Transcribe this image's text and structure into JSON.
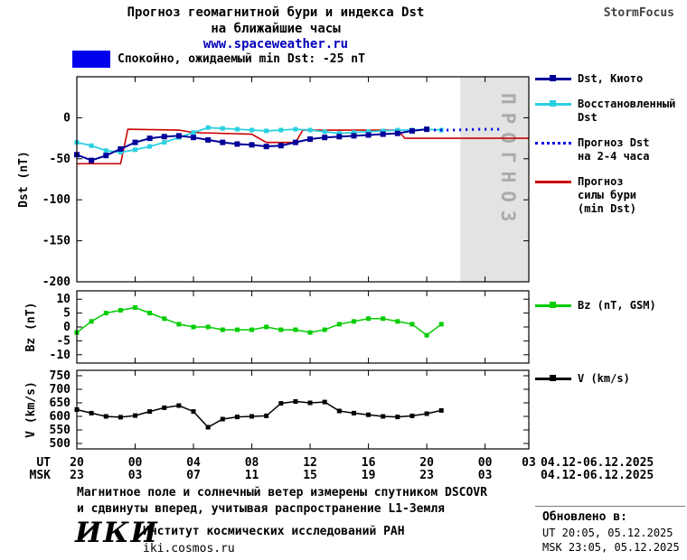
{
  "header": {
    "title_line1": "Прогноз геомагнитной бури и индекса Dst",
    "title_line2": "на ближайшие часы",
    "website": "www.spaceweather.ru",
    "brand": "StormFocus"
  },
  "banner": {
    "swatch_color": "#0000ee",
    "text": "Спокойно, ожидаемый min Dst: -25 nT"
  },
  "axis": {
    "xlim": [
      0,
      31
    ],
    "ticks_t": [
      0,
      4,
      8,
      12,
      16,
      20,
      24,
      28
    ],
    "ut": {
      "label": "UT",
      "ticks": [
        "20",
        "00",
        "04",
        "08",
        "12",
        "16",
        "20",
        "00"
      ],
      "edge": "03",
      "date": "04.12-06.12.2025"
    },
    "msk": {
      "label": "MSK",
      "ticks": [
        "23",
        "03",
        "07",
        "11",
        "15",
        "19",
        "23",
        "03"
      ],
      "edge": "",
      "date": "04.12-06.12.2025"
    }
  },
  "chart_data": [
    {
      "type": "line",
      "title": "Прогноз геомагнитной бури и индекса Dst на ближайшие часы",
      "ylabel": "Dst (nT)",
      "ylim": [
        -200,
        50
      ],
      "yticks": [
        0,
        -50,
        -100,
        -150,
        -200
      ],
      "forecast_region": {
        "t_start": 26.3,
        "t_end": 31,
        "label": "ПРОГНОЗ",
        "fill": "#e3e3e3",
        "text_color": "#ababab"
      },
      "series": [
        {
          "name": "Прогноз силы бури (min Dst)",
          "color": "#cc0000",
          "style": "solid",
          "marker": "none",
          "width": 1.6,
          "x": [
            0,
            3,
            3.5,
            7,
            8,
            12,
            13,
            15,
            15.5,
            22,
            22.5,
            31
          ],
          "y": [
            -56,
            -56,
            -14,
            -15,
            -18,
            -20,
            -30,
            -30,
            -15,
            -15,
            -25,
            -25
          ]
        },
        {
          "name": "Восстановленный Dst",
          "color": "#2ad0e0",
          "style": "solid",
          "marker": "square",
          "msize": 5,
          "width": 1.8,
          "x": [
            0,
            1,
            2,
            3,
            4,
            5,
            6,
            7,
            8,
            9,
            10,
            11,
            12,
            13,
            14,
            15,
            16,
            17,
            18,
            19,
            20,
            21,
            22,
            23,
            24,
            25
          ],
          "y": [
            -30,
            -34,
            -40,
            -42,
            -39,
            -35,
            -30,
            -24,
            -18,
            -12,
            -13,
            -14,
            -15,
            -16,
            -15,
            -14,
            -15,
            -17,
            -19,
            -18,
            -17,
            -16,
            -15,
            -15,
            -14,
            -15
          ]
        },
        {
          "name": "Dst, Киото",
          "color": "#000099",
          "style": "solid",
          "marker": "square",
          "msize": 6,
          "width": 2,
          "x": [
            0,
            1,
            2,
            3,
            4,
            5,
            6,
            7,
            8,
            9,
            10,
            11,
            12,
            13,
            14,
            15,
            16,
            17,
            18,
            19,
            20,
            21,
            22,
            23,
            24
          ],
          "y": [
            -45,
            -52,
            -46,
            -38,
            -30,
            -25,
            -23,
            -22,
            -24,
            -27,
            -30,
            -32,
            -33,
            -35,
            -34,
            -30,
            -26,
            -24,
            -23,
            -22,
            -21,
            -20,
            -19,
            -16,
            -14
          ]
        },
        {
          "name": "Прогноз Dst на 2-4 часа",
          "color": "#0000ee",
          "style": "dotted",
          "marker": "none",
          "width": 3,
          "x": [
            24.5,
            26,
            27.5,
            29
          ],
          "y": [
            -15,
            -15,
            -14,
            -14
          ]
        }
      ]
    },
    {
      "type": "line",
      "ylabel": "Bz (nT)",
      "ylim": [
        -13,
        13
      ],
      "yticks": [
        10,
        5,
        0,
        -5,
        -10
      ],
      "series": [
        {
          "name": "Bz (nT, GSM)",
          "color": "#00cc00",
          "style": "solid",
          "marker": "square",
          "msize": 5,
          "width": 1.5,
          "x": [
            0,
            1,
            2,
            3,
            4,
            5,
            6,
            7,
            8,
            9,
            10,
            11,
            12,
            13,
            14,
            15,
            16,
            17,
            18,
            19,
            20,
            21,
            22,
            23,
            24,
            25
          ],
          "y": [
            -2,
            2,
            5,
            6,
            7,
            5,
            3,
            1,
            0,
            0,
            -1,
            -1,
            -1,
            0,
            -1,
            -1,
            -2,
            -1,
            1,
            2,
            3,
            3,
            2,
            1,
            -3,
            1
          ]
        }
      ]
    },
    {
      "type": "line",
      "ylabel": "V (km/s)",
      "ylim": [
        480,
        770
      ],
      "yticks": [
        750,
        700,
        650,
        600,
        550,
        500
      ],
      "series": [
        {
          "name": "V (km/s)",
          "color": "#000000",
          "style": "solid",
          "marker": "square",
          "msize": 5,
          "width": 1.5,
          "x": [
            0,
            1,
            2,
            3,
            4,
            5,
            6,
            7,
            8,
            9,
            10,
            11,
            12,
            13,
            14,
            15,
            16,
            17,
            18,
            19,
            20,
            21,
            22,
            23,
            24,
            25
          ],
          "y": [
            625,
            612,
            600,
            597,
            603,
            618,
            632,
            640,
            618,
            560,
            590,
            598,
            600,
            602,
            648,
            655,
            650,
            653,
            620,
            612,
            606,
            600,
            598,
            602,
            610,
            622
          ]
        }
      ]
    }
  ],
  "legends": {
    "main": [
      {
        "lines": [
          "Dst, Киото"
        ],
        "color": "#000099",
        "style": "solid",
        "marker": true
      },
      {
        "lines": [
          "Восстановленный",
          "Dst"
        ],
        "color": "#2ad0e0",
        "style": "solid",
        "marker": true
      },
      {
        "lines": [
          "Прогноз Dst",
          "на 2-4 часа"
        ],
        "color": "#0000ee",
        "style": "dotted",
        "marker": false
      },
      {
        "lines": [
          "Прогноз",
          "силы бури",
          "(min Dst)"
        ],
        "color": "#cc0000",
        "style": "solid",
        "marker": false
      }
    ],
    "bz": [
      {
        "lines": [
          "Bz (nT, GSM)"
        ],
        "color": "#00cc00",
        "style": "solid",
        "marker": true
      }
    ],
    "v": [
      {
        "lines": [
          "V (km/s)"
        ],
        "color": "#000000",
        "style": "solid",
        "marker": true
      }
    ]
  },
  "footer": {
    "note_line1": "Магнитное поле и солнечный ветер измерены спутником DSCOVR",
    "note_line2": "и сдвинуты вперед, учитывая распространение L1-Земля",
    "logo": "ИКИ",
    "institute": "Институт космических исследований РАН",
    "site": "iki.cosmos.ru",
    "updated_label": "Обновлено в:",
    "updated_ut": "UT  20:05, 05.12.2025",
    "updated_msk": "MSK 23:05, 05.12.2025"
  }
}
